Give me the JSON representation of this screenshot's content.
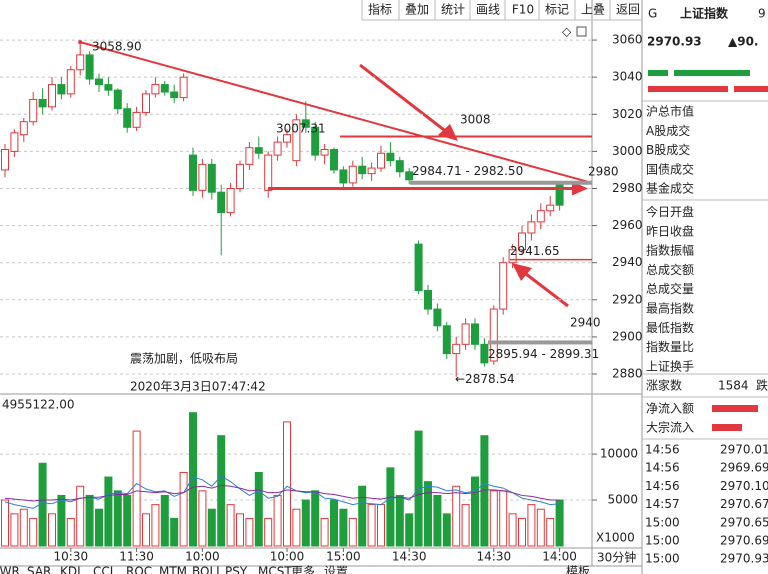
{
  "toolbar": [
    "指标",
    "叠加",
    "统计",
    "画线",
    "F10",
    "标记",
    "上叠",
    "返回"
  ],
  "quote": {
    "flag": "G",
    "name": "上证指数",
    "code": "9",
    "price": "2970.93",
    "change": "▲90."
  },
  "stats_labels": [
    "沪总市值",
    "A股成交",
    "B股成交",
    "国债成交",
    "基金成交",
    "今日开盘",
    "昨日收盘",
    "指数振幅",
    "总成交额",
    "总成交量",
    "最高指数",
    "最低指数",
    "指数量比",
    "上证换手"
  ],
  "breadth": {
    "label": "涨家数",
    "value": 1584,
    "next": "跌"
  },
  "flow_labels": [
    "净流入额",
    "大宗流入"
  ],
  "trades": [
    [
      "14:56",
      "2970.01"
    ],
    [
      "14:56",
      "2969.69"
    ],
    [
      "14:56",
      "2970.10"
    ],
    [
      "14:57",
      "2970.67"
    ],
    [
      "15:00",
      "2970.65"
    ],
    [
      "15:00",
      "2970.69"
    ],
    [
      "15:00",
      "2970.93"
    ]
  ],
  "volume_title": "4955122.00",
  "unit_label": "X1000",
  "tabs": [
    "LWR",
    "SAR",
    "KDJ",
    "CCI",
    "ROC",
    "MTM",
    "BOLL",
    "PSY",
    "MCST",
    "更多",
    "设置"
  ],
  "tabs_right": [
    "模板",
    "30分钟"
  ],
  "caption": [
    "震荡加剧，低吸布局",
    "2020年3月3日07:47:42"
  ],
  "annotations": {
    "trend_line": [
      3058.9,
      2983
    ],
    "levels": [
      3008,
      2980,
      2940
    ],
    "support_line": 2941.65,
    "price_labels": [
      {
        "value": 3058.9,
        "label": "3058.90"
      },
      {
        "value": 3007.31,
        "label": "3007.31"
      },
      {
        "value": 2984.71,
        "label": "2984.71 - 2982.50"
      },
      {
        "value": 2941.65,
        "label": "2941.65"
      },
      {
        "value": 2895.94,
        "label": "2895.94 - 2899.31"
      },
      {
        "value": 2878.54,
        "label": "←2878.54"
      }
    ]
  },
  "chart_data": [
    {
      "type": "candlestick",
      "up_color": "#e0383e",
      "down_color": "#1e9e3c",
      "categories": [
        null,
        null,
        null,
        null,
        null,
        null,
        null,
        "10:30",
        null,
        null,
        null,
        null,
        null,
        null,
        "11:30",
        null,
        null,
        null,
        null,
        null,
        null,
        "10:00",
        null,
        null,
        null,
        null,
        null,
        null,
        null,
        null,
        "10:00",
        null,
        null,
        null,
        null,
        null,
        "15:00",
        null,
        null,
        null,
        null,
        null,
        null,
        "14:30",
        null,
        null,
        null,
        null,
        null,
        null,
        null,
        null,
        "14:30",
        null,
        null,
        null,
        null,
        null,
        null,
        "14:00"
      ],
      "open": [
        2990,
        3000,
        3009,
        3016,
        3028,
        3024,
        3036,
        3031,
        3044,
        3052,
        3039,
        3036,
        3033,
        3023,
        3013,
        3021,
        3031,
        3036,
        3032,
        3029,
        2998,
        2979,
        2993,
        2978,
        2967,
        2980,
        2993,
        3002,
        2979,
        2998,
        3005,
        2995,
        3017,
        3013,
        2998,
        3001,
        2990,
        2983,
        2992,
        2988,
        2991,
        2999,
        2995,
        2989,
        2950,
        2925,
        2915,
        2906,
        2891,
        2896,
        2907,
        2896,
        2887,
        2915,
        2940,
        2947,
        2956,
        2962,
        2968,
        2982
      ],
      "high": [
        3004,
        3012,
        3018,
        3032,
        3034,
        3040,
        3040,
        3046,
        3058.9,
        3054,
        3042,
        3040,
        3034,
        3026,
        3024,
        3033,
        3040,
        3038,
        3036,
        3042,
        3002,
        2996,
        2996,
        2982,
        2983,
        2995,
        3005,
        3008,
        3000,
        3008,
        3012,
        3020,
        3027,
        3016,
        3004,
        3002,
        2992,
        2995,
        2997,
        2994,
        3003,
        3005,
        2997,
        2991,
        2952,
        2928,
        2918,
        2908,
        2900,
        2910,
        2910,
        2899.31,
        2917,
        2943,
        2950,
        2960,
        2966,
        2972,
        2976,
        2984
      ],
      "low": [
        2986,
        2997,
        3005,
        3014,
        3020,
        3022,
        3028,
        3029,
        3041,
        3036,
        3032,
        3030,
        3020,
        3010,
        3011,
        3019,
        3029,
        3030,
        3026,
        3027,
        2976,
        2975,
        2974,
        2944,
        2965,
        2978,
        2990,
        2996,
        2975,
        2995,
        3002,
        2992,
        3010,
        2995,
        2993,
        2988,
        2980,
        2981,
        2985,
        2984,
        2989,
        2992,
        2986,
        2982.5,
        2923,
        2912,
        2903,
        2888,
        2878.54,
        2893,
        2893,
        2884,
        2885,
        2912,
        2937,
        2944,
        2952,
        2958,
        2965,
        2968
      ],
      "close": [
        3001,
        3010,
        3016,
        3028,
        3024,
        3036,
        3031,
        3044,
        3052,
        3039,
        3036,
        3033,
        3023,
        3013,
        3021,
        3031,
        3036,
        3032,
        3029,
        3040,
        2979,
        2993,
        2978,
        2967,
        2980,
        2993,
        3002,
        2999,
        2998,
        3005,
        3009,
        3017,
        3013,
        2998,
        3001,
        2990,
        2983,
        2992,
        2988,
        2991,
        2999,
        2995,
        2989,
        2984.71,
        2925,
        2915,
        2906,
        2891,
        2896,
        2907,
        2896,
        2886,
        2915,
        2940,
        2947,
        2956,
        2962,
        2968,
        2971,
        2971
      ],
      "ylim": [
        2870.3,
        3081.6
      ],
      "yticks": [
        2880,
        2900,
        2920,
        2940,
        2960,
        2980,
        3000,
        3020,
        3040,
        3060
      ],
      "grid": true
    },
    {
      "type": "bar",
      "values": [
        5000,
        3500,
        4000,
        3000,
        9000,
        3500,
        5500,
        3000,
        6500,
        5500,
        4000,
        7500,
        6000,
        5500,
        12500,
        3500,
        4500,
        5500,
        3000,
        8000,
        14500,
        6000,
        4000,
        12000,
        4500,
        3500,
        3000,
        8000,
        3000,
        5500,
        13500,
        4000,
        5000,
        6000,
        3000,
        5000,
        4000,
        3000,
        6500,
        4500,
        4500,
        8500,
        5500,
        3500,
        12500,
        7000,
        5500,
        3500,
        6500,
        4500,
        7500,
        12000,
        6000,
        6000,
        3500,
        3000,
        4500,
        4000,
        3000,
        5000
      ],
      "series": [
        {
          "color": "#2f7fd6",
          "values": [
            4800,
            4500,
            4300,
            4100,
            4700,
            4600,
            5000,
            4800,
            5200,
            5300,
            5100,
            5600,
            5800,
            5700,
            6800,
            6200,
            5900,
            6000,
            5400,
            5800,
            7500,
            7200,
            6500,
            7600,
            7000,
            6200,
            5500,
            6000,
            5200,
            5400,
            6500,
            6000,
            5800,
            5900,
            5200,
            5100,
            4800,
            4500,
            4700,
            4600,
            4500,
            5200,
            5300,
            5000,
            6200,
            6500,
            6400,
            6000,
            6100,
            5800,
            6000,
            6800,
            6500,
            6300,
            5800,
            5200,
            5000,
            4800,
            4500,
            4600
          ]
        },
        {
          "color": "#8a2a9a",
          "values": [
            5200,
            5100,
            5000,
            4900,
            5000,
            5000,
            5100,
            5000,
            5200,
            5300,
            5300,
            5500,
            5600,
            5600,
            6000,
            5900,
            5800,
            5900,
            5700,
            5800,
            6400,
            6500,
            6300,
            6600,
            6500,
            6300,
            6000,
            6100,
            5800,
            5800,
            6100,
            6000,
            5900,
            5900,
            5700,
            5600,
            5400,
            5200,
            5300,
            5200,
            5100,
            5300,
            5300,
            5200,
            5600,
            5800,
            5800,
            5700,
            5800,
            5700,
            5800,
            6100,
            6100,
            6000,
            5800,
            5500,
            5400,
            5200,
            5000,
            5000
          ]
        }
      ],
      "ylim": [
        0,
        16100
      ],
      "yticks": [
        5000,
        10000
      ],
      "grid": true
    }
  ]
}
